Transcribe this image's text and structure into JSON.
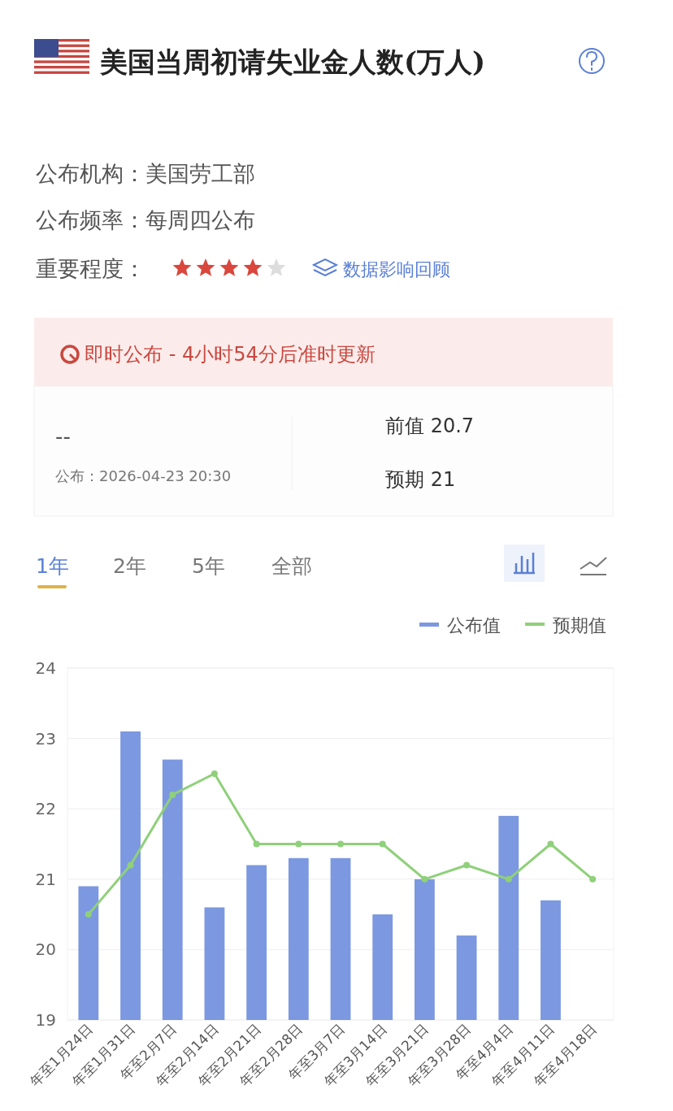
{
  "chart_data": {
    "type": "bar",
    "title": "美国当周初请失业金人数(万人)",
    "annotations": [
      "公布机构：美国劳工部",
      "公布频率：每周四公布",
      "重要程度：",
      "数据影响回顾",
      "即时公布 - 4小时54分后准时更新",
      "--",
      "公布：2026-04-23 20:30",
      "前值 20.7",
      "预期 21",
      "1年",
      "2年",
      "5年",
      "全部"
    ],
    "categories": [
      "年至1月24日",
      "年至1月31日",
      "年至2月7日",
      "年至2月14日",
      "年至2月21日",
      "年至2月28日",
      "年至3月7日",
      "年至3月14日",
      "年至3月21日",
      "年至3月28日",
      "年至4月4日",
      "年至4月11日",
      "年至4月18日"
    ],
    "series": [
      {
        "name": "公布值",
        "color": "#7b98e0",
        "values": [
          20.9,
          23.1,
          22.7,
          20.6,
          21.2,
          21.3,
          21.3,
          20.5,
          21.0,
          20.2,
          21.9,
          20.7,
          null
        ]
      },
      {
        "name": "预期值",
        "type": "line",
        "color": "#8fd07a",
        "values": [
          20.5,
          21.2,
          22.2,
          22.5,
          21.5,
          21.5,
          21.5,
          21.5,
          21.0,
          21.2,
          21.0,
          21.5,
          21.0
        ]
      }
    ],
    "ylim": [
      19,
      24
    ],
    "yticks": [
      19,
      20,
      21,
      22,
      23,
      24
    ],
    "grid": "y",
    "legend": "top right",
    "marker": "circle",
    "line_style": "solid"
  }
}
